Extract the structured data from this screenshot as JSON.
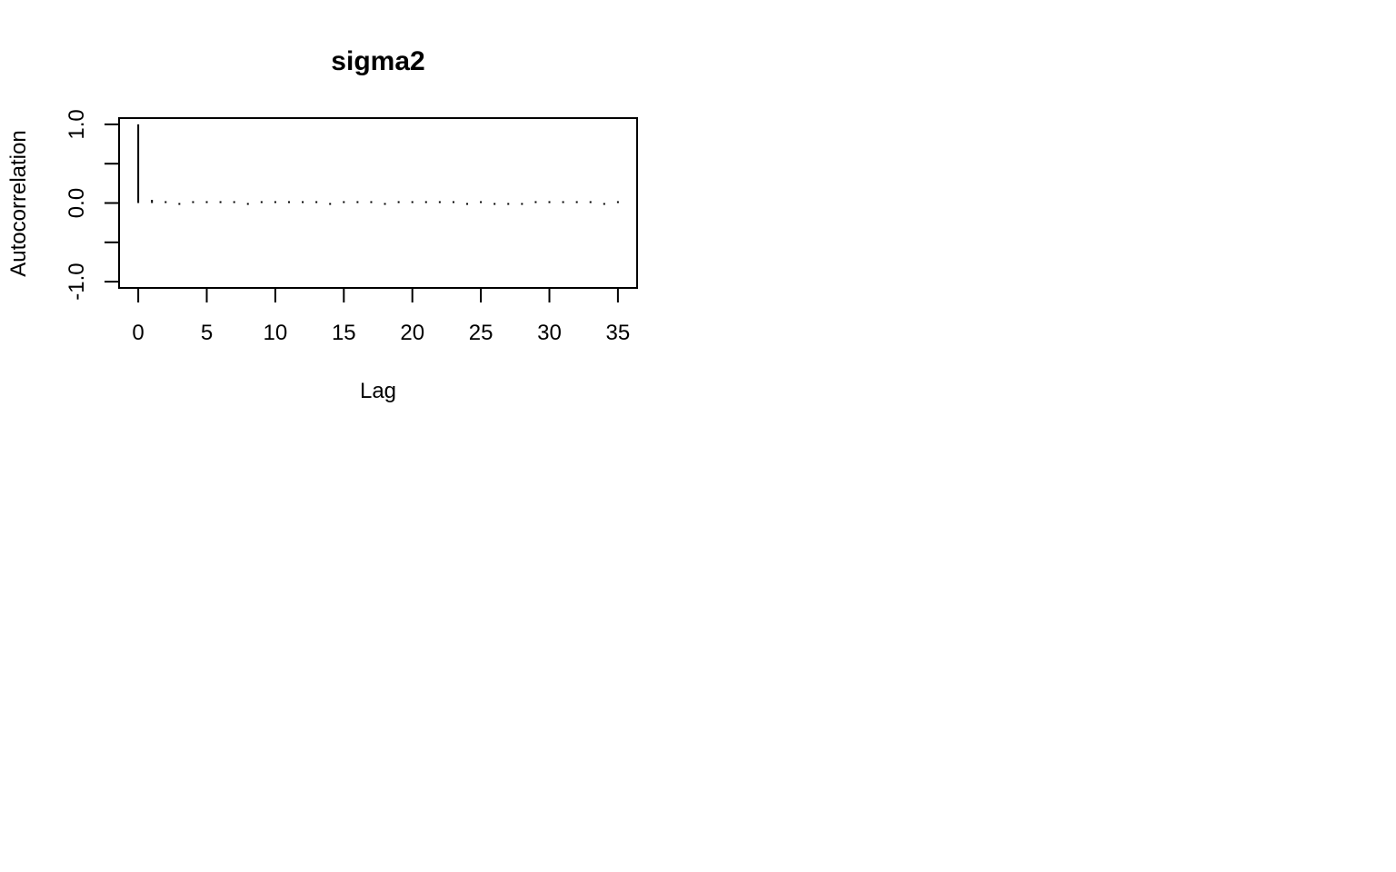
{
  "chart_data": {
    "type": "bar",
    "title": "sigma2",
    "xlabel": "Lag",
    "ylabel": "Autocorrelation",
    "xlim": [
      -1.4,
      36.4
    ],
    "ylim": [
      -1.08,
      1.08
    ],
    "x_ticks": [
      0,
      5,
      10,
      15,
      20,
      25,
      30,
      35
    ],
    "x_tick_labels": [
      "0",
      "5",
      "10",
      "15",
      "20",
      "25",
      "30",
      "35"
    ],
    "y_ticks": [
      -1.0,
      -0.5,
      0.0,
      0.5,
      1.0
    ],
    "y_tick_labels": [
      "-1.0",
      "",
      "0.0",
      "",
      "1.0"
    ],
    "grid": false,
    "legend": "none",
    "colors": {
      "ink": "#000000",
      "background": "#ffffff"
    },
    "x": [
      0,
      1,
      2,
      3,
      4,
      5,
      6,
      7,
      8,
      9,
      10,
      11,
      12,
      13,
      14,
      15,
      16,
      17,
      18,
      19,
      20,
      21,
      22,
      23,
      24,
      25,
      26,
      27,
      28,
      29,
      30,
      31,
      32,
      33,
      34,
      35
    ],
    "values": [
      1.0,
      0.04,
      0.01,
      -0.01,
      0.01,
      0.01,
      0.02,
      0.02,
      -0.02,
      0.01,
      0.01,
      0.02,
      0.01,
      0.01,
      -0.01,
      0.01,
      0.01,
      0.01,
      -0.01,
      0.01,
      0.01,
      0.01,
      0.01,
      0.01,
      -0.01,
      0.01,
      -0.01,
      -0.02,
      -0.01,
      0.01,
      0.01,
      0.01,
      0.01,
      0.01,
      -0.01,
      0.01
    ]
  }
}
